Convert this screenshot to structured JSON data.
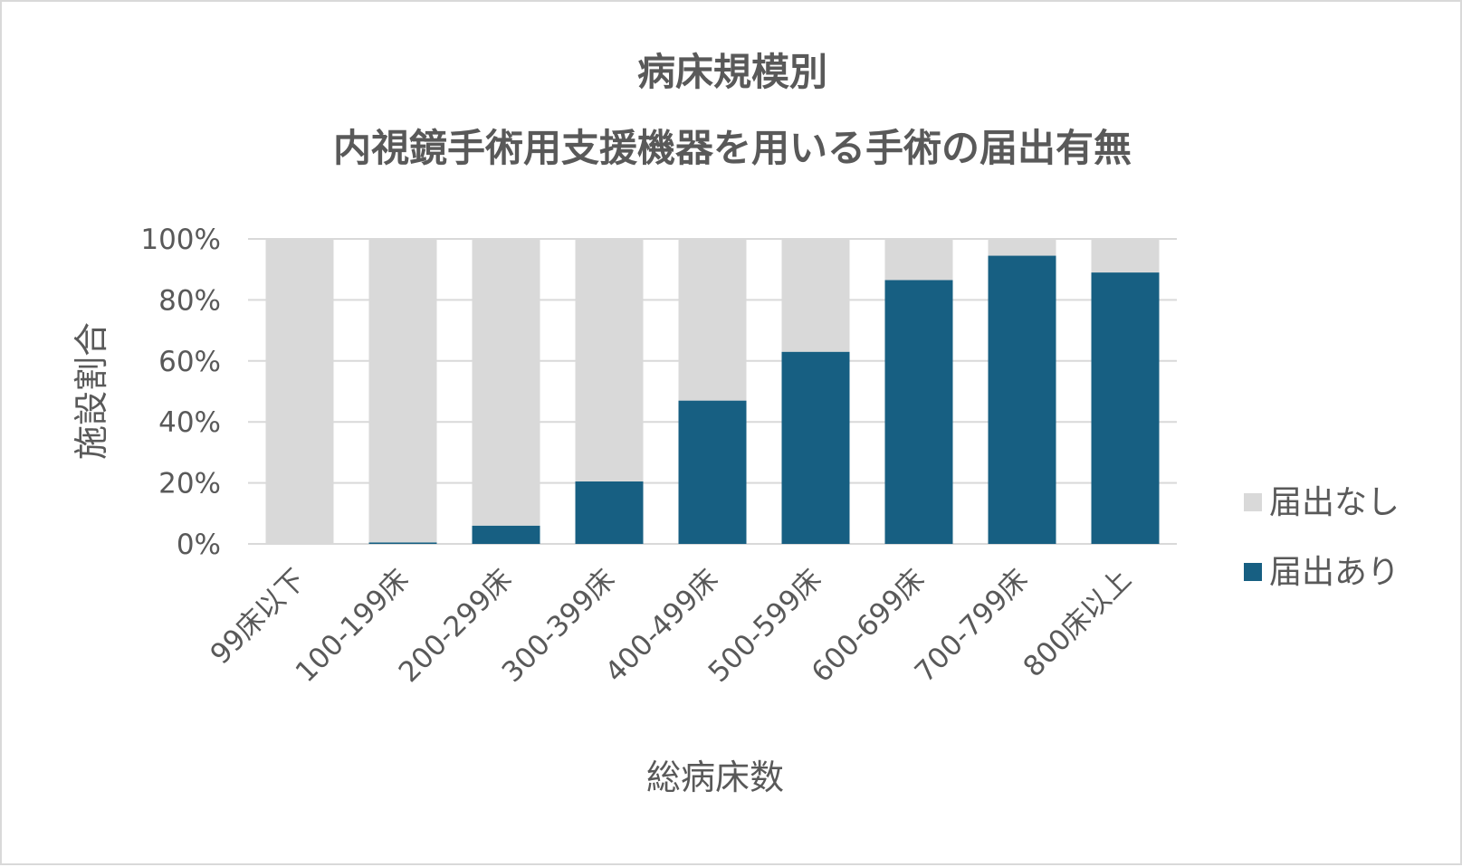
{
  "chart_data": {
    "type": "bar",
    "stacked": true,
    "title_lines": [
      "病床規模別",
      "内視鏡手術用支援機器を用いる手術の届出有無"
    ],
    "xlabel": "総病床数",
    "ylabel": "施設割合",
    "categories": [
      "99床以下",
      "100-199床",
      "200-299床",
      "300-399床",
      "400-499床",
      "500-599床",
      "600-699床",
      "700-799床",
      "800床以上"
    ],
    "series": [
      {
        "name": "届出あり",
        "color": "#175f82",
        "values": [
          0,
          0.5,
          6,
          20.5,
          47,
          63,
          86.5,
          94.5,
          89
        ]
      },
      {
        "name": "届出なし",
        "color": "#d9d9d9",
        "values": [
          100,
          99.5,
          94,
          79.5,
          53,
          37,
          13.5,
          5.5,
          11
        ]
      }
    ],
    "ylim": [
      0,
      100
    ],
    "yticks": [
      "0%",
      "20%",
      "40%",
      "60%",
      "80%",
      "100%"
    ],
    "grid": true,
    "legend_position": "right",
    "legend_order": [
      "届出なし",
      "届出あり"
    ]
  }
}
